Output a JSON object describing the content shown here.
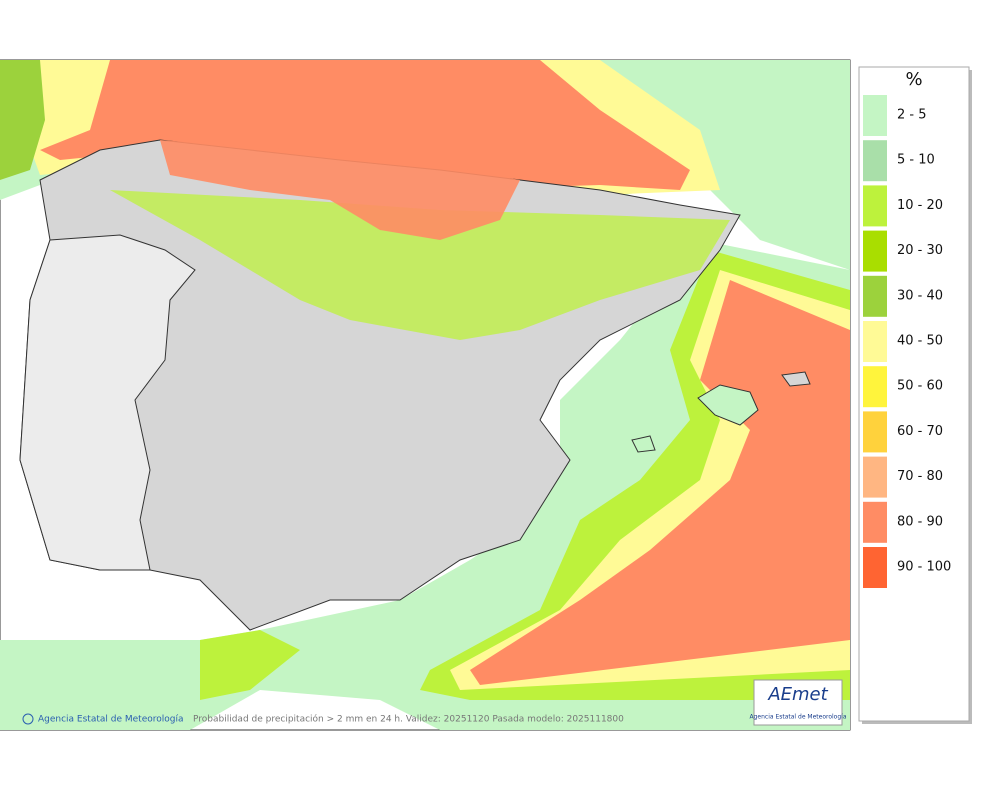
{
  "legend": {
    "title": "%",
    "items": [
      {
        "label": "2 - 5",
        "color": "#c4f5c4"
      },
      {
        "label": "5 - 10",
        "color": "#a9dfa9"
      },
      {
        "label": "10 - 20",
        "color": "#bdf23c"
      },
      {
        "label": "20 - 30",
        "color": "#a9de00"
      },
      {
        "label": "30 - 40",
        "color": "#9cd23c"
      },
      {
        "label": "40 - 50",
        "color": "#fffa96"
      },
      {
        "label": "50 - 60",
        "color": "#fff43c"
      },
      {
        "label": "60 - 70",
        "color": "#ffd23c"
      },
      {
        "label": "70 - 80",
        "color": "#ffb682"
      },
      {
        "label": "80 - 90",
        "color": "#ff8c64"
      },
      {
        "label": "90 - 100",
        "color": "#ff6432"
      }
    ]
  },
  "footer": {
    "credit": "Agencia Estatal de Meteorología",
    "caption": "Probabilidad de precipitación > 2 mm en 24 h. Validez: 20251120 Pasada modelo: 2025111800"
  },
  "logo": {
    "text": "AEmet",
    "subtitle": "Agencia Estatal de Meteorología"
  }
}
